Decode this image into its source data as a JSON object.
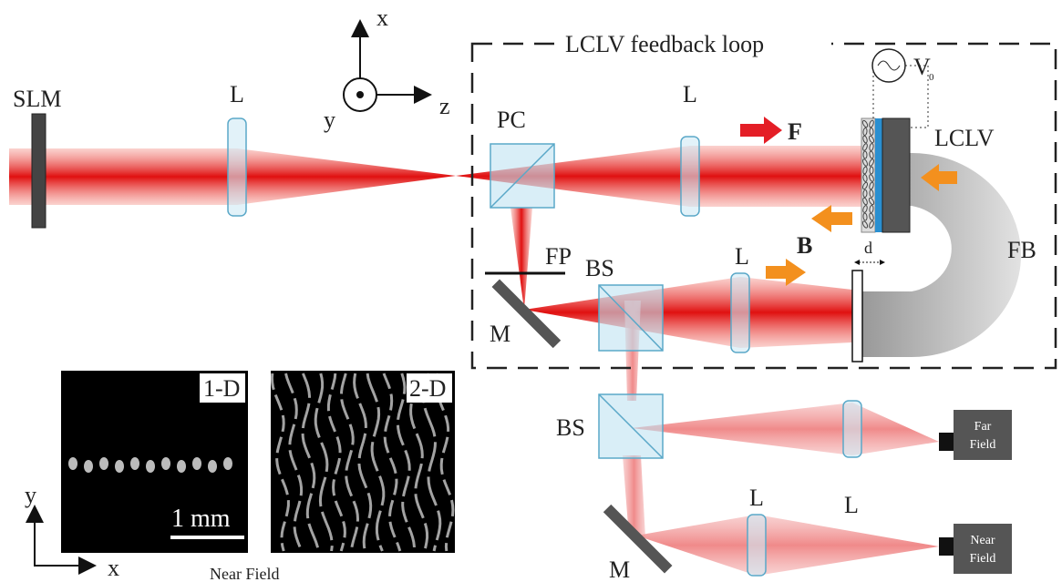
{
  "coordinates": {
    "x": "x",
    "y": "y",
    "z": "z"
  },
  "feedback_loop": {
    "title": "LCLV feedback loop",
    "voltage": {
      "symbol": "V",
      "subscript": "0"
    },
    "forward": "F",
    "backward": "B",
    "distance": "d",
    "feedback": "FB",
    "valve": "LCLV"
  },
  "components": {
    "slm": "SLM",
    "lens_1": "L",
    "polarizing_cube": "PC",
    "lens_2": "L",
    "fourier_plane": "FP",
    "mirror_1": "M",
    "beam_splitter_1": "BS",
    "lens_3": "L",
    "beam_splitter_2": "BS",
    "lens_4": "L",
    "mirror_2": "M",
    "lens_5": "L"
  },
  "cameras": {
    "far": [
      "Far",
      "Field"
    ],
    "near": [
      "Near",
      "Field"
    ]
  },
  "insets": {
    "one_d": "1-D",
    "two_d": "2-D",
    "scale": "1 mm",
    "axis_y": "y",
    "axis_x": "x",
    "caption": "Near Field"
  }
}
